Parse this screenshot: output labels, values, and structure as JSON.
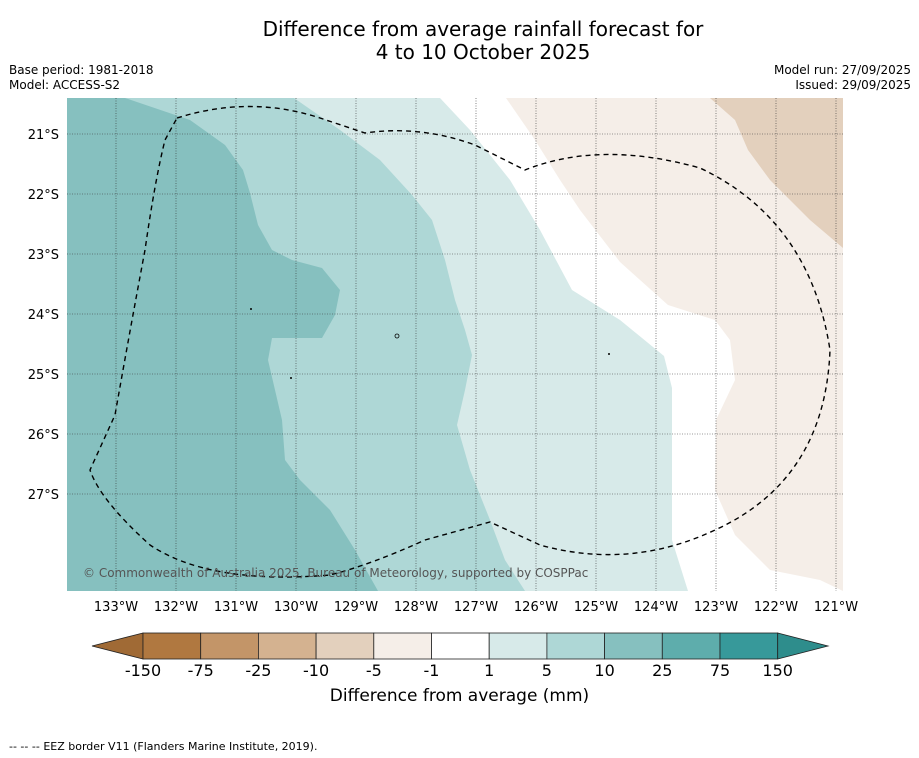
{
  "title": {
    "line1": "Difference from average rainfall forecast for",
    "line2": "4 to 10 October 2025"
  },
  "meta_left": {
    "base_period": "Base period: 1981-2018",
    "model": "Model: ACCESS-S2"
  },
  "meta_right": {
    "model_run": "Model run: 27/09/2025",
    "issued": "Issued: 29/09/2025"
  },
  "map": {
    "lat_labels": [
      "21°S",
      "22°S",
      "23°S",
      "24°S",
      "25°S",
      "26°S",
      "27°S"
    ],
    "lon_labels": [
      "133°W",
      "132°W",
      "131°W",
      "130°W",
      "129°W",
      "128°W",
      "127°W",
      "126°W",
      "125°W",
      "124°W",
      "123°W",
      "122°W",
      "121°W"
    ],
    "copyright": "© Commonwealth of Australia 2025, Bureau of Meteorology, supported by COSPPac"
  },
  "colorbar": {
    "ticks": [
      "-150",
      "-75",
      "-25",
      "-10",
      "-5",
      "-1",
      "1",
      "5",
      "10",
      "25",
      "75",
      "150"
    ],
    "colors": [
      "#b07840",
      "#c39568",
      "#d4b290",
      "#e3d0bd",
      "#f5eee8",
      "#ffffff",
      "#d7eae9",
      "#aed7d6",
      "#86c0bf",
      "#5eadac",
      "#37999a"
    ],
    "extend_low_color": "#a06a35",
    "extend_high_color": "#2e8d8c",
    "label": "Difference from average (mm)"
  },
  "footer": {
    "legend_symbol": "-- -- --",
    "legend_text": "EEZ border V11 (Flanders Marine Institute, 2019)."
  }
}
